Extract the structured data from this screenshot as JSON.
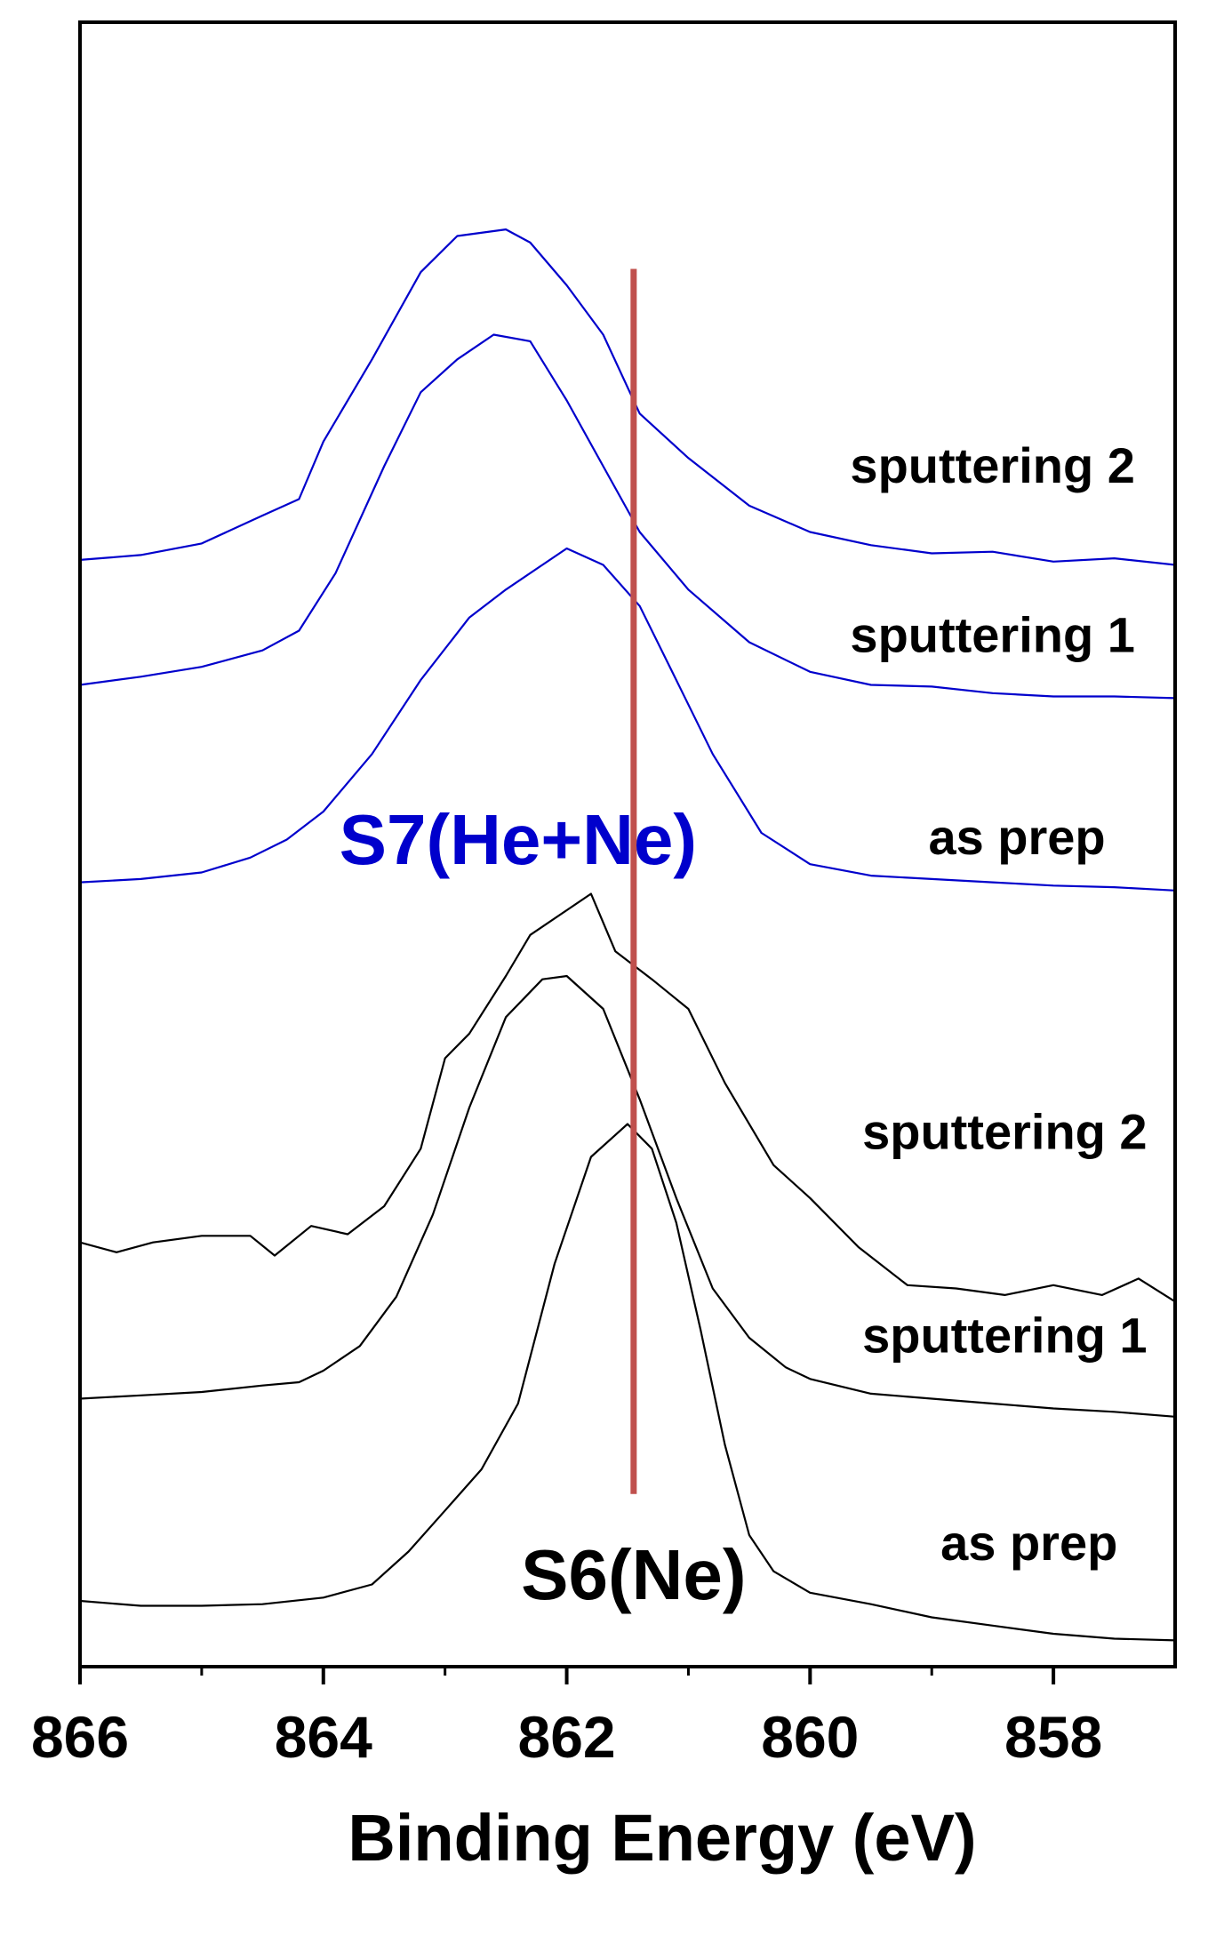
{
  "chart_data": {
    "type": "line",
    "title": "",
    "xlabel": "Binding Energy (eV)",
    "ylabel": "",
    "x_reversed": true,
    "xlim": [
      866,
      857
    ],
    "ylim": [
      0,
      1
    ],
    "x_ticks": [
      866,
      864,
      862,
      860,
      858
    ],
    "x_tick_labels": [
      "866",
      "864",
      "862",
      "860",
      "858"
    ],
    "x_minor_ticks": [
      865,
      863,
      861,
      859
    ],
    "y_ticks": [],
    "grid": false,
    "reference_line": {
      "x": 861.45,
      "y_range": [
        0.105,
        0.85
      ],
      "color": "#c0504d"
    },
    "groups": [
      {
        "label": "S7(He+Ne)",
        "color": "#0000cc",
        "label_position": {
          "x": 862.4,
          "y": 0.488
        }
      },
      {
        "label": "S6(Ne)",
        "color": "#000000",
        "label_position": {
          "x": 861.45,
          "y": 0.041
        }
      }
    ],
    "series": [
      {
        "name": "sputtering 2",
        "group": "S7(He+Ne)",
        "color": "#0000cc",
        "label": "sputtering 2",
        "label_position": {
          "x": 858.5,
          "y": 0.72
        },
        "x": [
          866,
          865.5,
          865,
          864.5,
          864.2,
          864,
          863.6,
          863.2,
          862.9,
          862.5,
          862.3,
          862.0,
          861.7,
          861.4,
          861.0,
          860.5,
          860.0,
          859.5,
          859,
          858.5,
          858,
          857.5,
          857
        ],
        "y": [
          0.673,
          0.676,
          0.683,
          0.7,
          0.71,
          0.745,
          0.795,
          0.848,
          0.87,
          0.874,
          0.866,
          0.84,
          0.81,
          0.762,
          0.735,
          0.706,
          0.69,
          0.682,
          0.677,
          0.678,
          0.672,
          0.674,
          0.67
        ]
      },
      {
        "name": "sputtering 1",
        "group": "S7(He+Ne)",
        "color": "#0000cc",
        "label": "sputtering 1",
        "label_position": {
          "x": 858.5,
          "y": 0.617
        },
        "x": [
          866,
          865.5,
          865,
          864.5,
          864.2,
          863.9,
          863.5,
          863.2,
          862.9,
          862.6,
          862.3,
          862.0,
          861.7,
          861.4,
          861.0,
          860.5,
          860.0,
          859.5,
          859,
          858.5,
          858,
          857.5,
          857
        ],
        "y": [
          0.597,
          0.602,
          0.608,
          0.618,
          0.63,
          0.665,
          0.73,
          0.775,
          0.795,
          0.81,
          0.806,
          0.77,
          0.73,
          0.69,
          0.655,
          0.623,
          0.605,
          0.597,
          0.596,
          0.592,
          0.59,
          0.59,
          0.589
        ]
      },
      {
        "name": "as prep",
        "group": "S7(He+Ne)",
        "color": "#0000cc",
        "label": "as prep",
        "label_position": {
          "x": 858.3,
          "y": 0.494
        },
        "x": [
          866,
          865.5,
          865,
          864.6,
          864.3,
          864.0,
          863.6,
          863.2,
          862.8,
          862.5,
          862.2,
          862.0,
          861.7,
          861.4,
          861.1,
          860.8,
          860.4,
          860.0,
          859.5,
          859,
          858.5,
          858,
          857.5,
          857
        ],
        "y": [
          0.477,
          0.479,
          0.483,
          0.492,
          0.503,
          0.52,
          0.555,
          0.6,
          0.638,
          0.655,
          0.67,
          0.68,
          0.67,
          0.645,
          0.6,
          0.555,
          0.507,
          0.488,
          0.481,
          0.479,
          0.477,
          0.475,
          0.474,
          0.472
        ]
      },
      {
        "name": "sputtering 2",
        "group": "S6(Ne)",
        "color": "#000000",
        "label": "sputtering 2",
        "label_position": {
          "x": 858.4,
          "y": 0.315
        },
        "x": [
          866,
          865.7,
          865.4,
          865.0,
          864.6,
          864.4,
          864.1,
          863.8,
          863.5,
          863.2,
          863.0,
          862.8,
          862.5,
          862.3,
          862.0,
          861.8,
          861.6,
          861.3,
          861.0,
          860.7,
          860.3,
          860.0,
          859.6,
          859.2,
          858.8,
          858.4,
          858.0,
          857.6,
          857.3,
          857
        ],
        "y": [
          0.258,
          0.252,
          0.258,
          0.262,
          0.262,
          0.25,
          0.268,
          0.263,
          0.28,
          0.315,
          0.37,
          0.385,
          0.42,
          0.445,
          0.46,
          0.47,
          0.435,
          0.418,
          0.4,
          0.355,
          0.305,
          0.285,
          0.255,
          0.232,
          0.23,
          0.226,
          0.232,
          0.226,
          0.236,
          0.222
        ]
      },
      {
        "name": "sputtering 1",
        "group": "S6(Ne)",
        "color": "#000000",
        "label": "sputtering 1",
        "label_position": {
          "x": 858.4,
          "y": 0.191
        },
        "x": [
          866,
          865.5,
          865,
          864.5,
          864.2,
          864.0,
          863.7,
          863.4,
          863.1,
          862.8,
          862.5,
          862.2,
          862.0,
          861.7,
          861.4,
          861.1,
          860.8,
          860.5,
          860.2,
          860.0,
          859.5,
          859,
          858.5,
          858,
          857.5,
          857
        ],
        "y": [
          0.163,
          0.165,
          0.167,
          0.171,
          0.173,
          0.18,
          0.195,
          0.225,
          0.275,
          0.34,
          0.395,
          0.418,
          0.42,
          0.4,
          0.345,
          0.285,
          0.23,
          0.2,
          0.182,
          0.175,
          0.166,
          0.163,
          0.16,
          0.157,
          0.155,
          0.152
        ]
      },
      {
        "name": "as prep",
        "group": "S6(Ne)",
        "color": "#000000",
        "label": "as prep",
        "label_position": {
          "x": 858.2,
          "y": 0.065
        },
        "x": [
          866,
          865.5,
          865,
          864.5,
          864.0,
          863.6,
          863.3,
          863.0,
          862.7,
          862.4,
          862.1,
          861.8,
          861.5,
          861.3,
          861.1,
          860.9,
          860.7,
          860.5,
          860.3,
          860.0,
          859.5,
          859,
          858.5,
          858,
          857.5,
          857
        ],
        "y": [
          0.04,
          0.037,
          0.037,
          0.038,
          0.042,
          0.05,
          0.07,
          0.095,
          0.12,
          0.16,
          0.245,
          0.31,
          0.33,
          0.315,
          0.27,
          0.205,
          0.135,
          0.08,
          0.058,
          0.045,
          0.038,
          0.03,
          0.025,
          0.02,
          0.017,
          0.016
        ]
      }
    ]
  }
}
